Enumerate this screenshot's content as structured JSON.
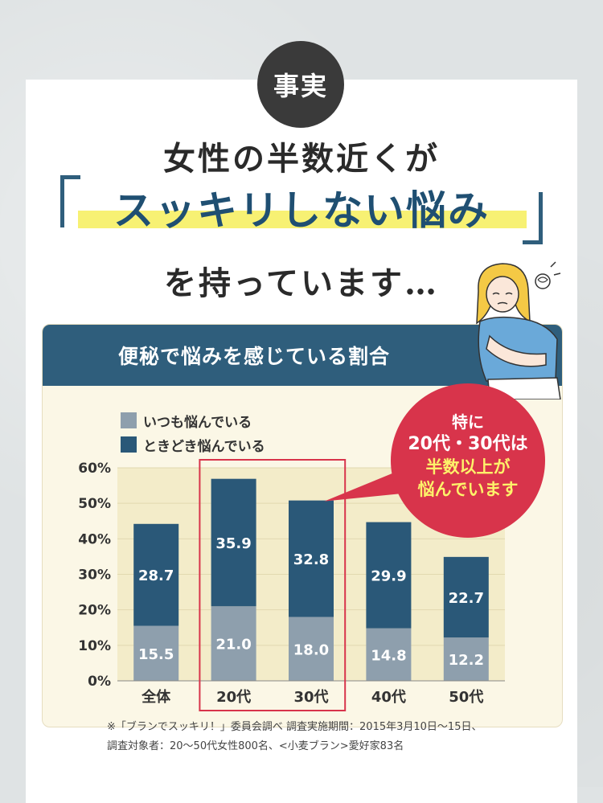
{
  "badge": "事実",
  "headline": {
    "line1": "女性の半数近くが",
    "line2": "スッキリしない悩み",
    "line3": "を持っています…"
  },
  "panel_title": "便秘で悩みを感じている割合",
  "callout": {
    "line1": "特に",
    "line2": "20代・30代は",
    "line3": "半数以上が",
    "line4": "悩んでいます"
  },
  "footnote": {
    "line1": "※「ブランでスッキリ！」委員会調べ 調査実施期間：2015年3月10日〜15日、",
    "line2": "調査対象者：20〜50代女性800名、<小麦ブラン>愛好家83名"
  },
  "colors": {
    "sometimes": "#2a5878",
    "always": "#8e9fad",
    "accent_red": "#d8344b",
    "highlight_frame": "#d8344b"
  },
  "chart_data": {
    "type": "bar",
    "stacked": true,
    "categories": [
      "全体",
      "20代",
      "30代",
      "40代",
      "50代"
    ],
    "series": [
      {
        "name": "いつも悩んでいる",
        "values": [
          15.5,
          21.0,
          18.0,
          14.8,
          12.2
        ]
      },
      {
        "name": "ときどき悩んでいる",
        "values": [
          28.7,
          35.9,
          32.8,
          29.9,
          22.7
        ]
      }
    ],
    "value_labels": {
      "いつも悩んでいる": [
        "15.5",
        "21.0",
        "18.0",
        "14.8",
        "12.2"
      ],
      "ときどき悩んでいる": [
        "28.7",
        "35.9",
        "32.8",
        "29.9",
        "22.7"
      ]
    },
    "y_ticks": [
      "0%",
      "10%",
      "20%",
      "30%",
      "40%",
      "50%",
      "60%"
    ],
    "ylim": [
      0,
      60
    ],
    "legend_position": "top-left",
    "highlighted_categories": [
      "20代",
      "30代"
    ]
  }
}
